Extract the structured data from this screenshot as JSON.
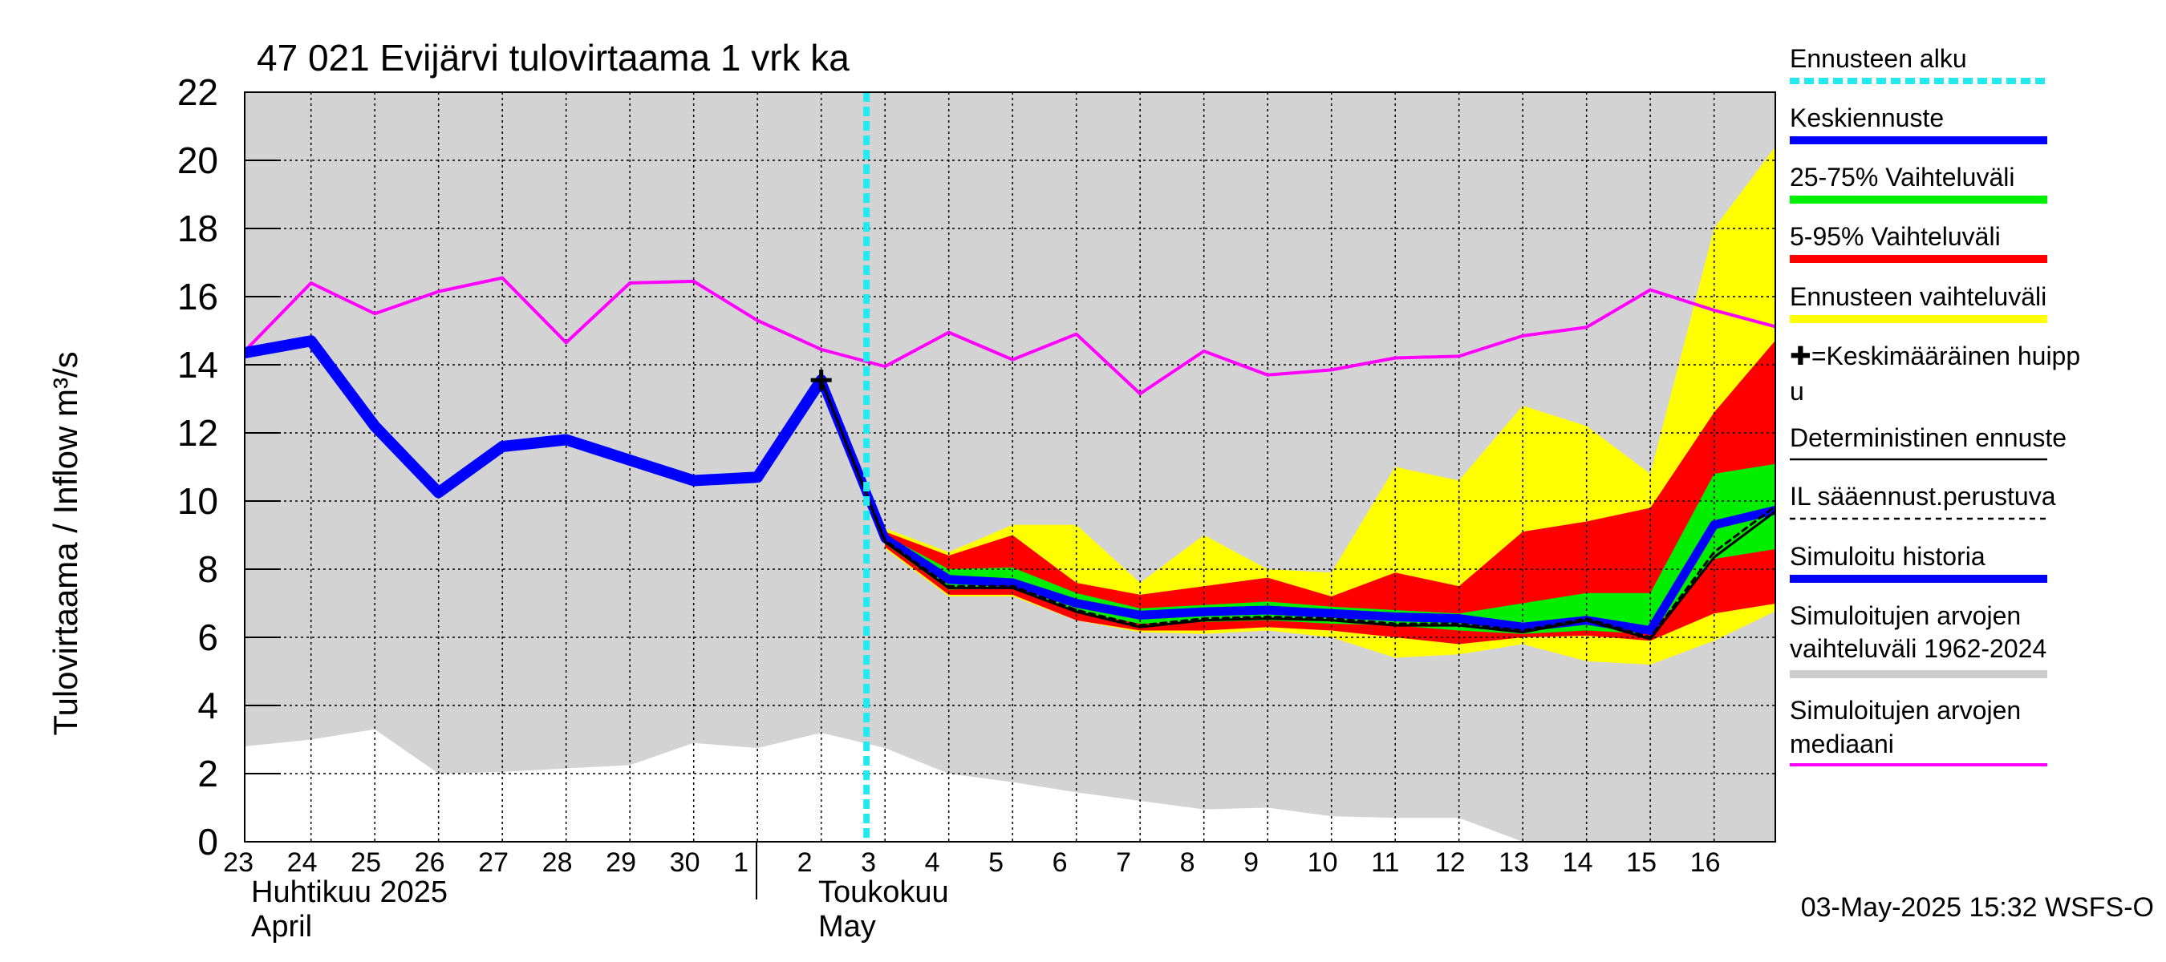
{
  "chart_data": {
    "type": "area",
    "title": "47 021 Evijärvi tulovirtaama 1 vrk ka",
    "ylabel": "Tulovirtaama / Inflow    m³/s",
    "ylim": [
      0,
      22
    ],
    "yticks": [
      0,
      2,
      4,
      6,
      8,
      10,
      12,
      14,
      16,
      18,
      20,
      22
    ],
    "x_ticks": [
      "23",
      "24",
      "25",
      "26",
      "27",
      "28",
      "29",
      "30",
      "1",
      "2",
      "3",
      "4",
      "5",
      "6",
      "7",
      "8",
      "9",
      "10",
      "11",
      "12",
      "13",
      "14",
      "15",
      "16"
    ],
    "xlim": [
      -0.04,
      24.0
    ],
    "months": [
      {
        "fi": "Huhtikuu  2025",
        "en": "April"
      },
      {
        "fi": "Toukokuu",
        "en": "May"
      }
    ],
    "forecast_start": 10,
    "grid": true,
    "legend_position": "right",
    "series": [
      {
        "name": "sim_range_upper",
        "x": [
          -0.04,
          24
        ],
        "values": [
          22,
          22
        ]
      },
      {
        "name": "sim_range_lower",
        "x": [
          -0.04,
          1,
          2,
          3,
          4,
          5,
          6,
          7,
          8,
          9,
          10,
          11,
          12,
          13,
          14,
          15,
          16,
          17,
          18,
          19,
          20,
          21,
          22,
          23,
          24
        ],
        "values": [
          2.8,
          3.0,
          3.3,
          2.0,
          2.05,
          2.15,
          2.25,
          2.9,
          2.75,
          3.2,
          2.75,
          2.0,
          1.75,
          1.45,
          1.2,
          0.95,
          1.0,
          0.75,
          0.7,
          0.7,
          0.0,
          -0.3,
          -0.3,
          -0.3,
          -0.3
        ]
      },
      {
        "name": "Simuloitujen arvojen mediaani",
        "x": [
          -0.04,
          1,
          2,
          3,
          4,
          5,
          6,
          7,
          8,
          9,
          10,
          11,
          12,
          13,
          14,
          15,
          16,
          17,
          18,
          19,
          20,
          21,
          22,
          23,
          24
        ],
        "values": [
          14.4,
          16.4,
          15.5,
          16.15,
          16.55,
          14.65,
          16.4,
          16.45,
          15.3,
          14.45,
          13.95,
          14.95,
          14.15,
          14.9,
          13.15,
          14.4,
          13.7,
          13.85,
          14.2,
          14.25,
          14.85,
          15.1,
          16.2,
          15.6,
          15.1
        ]
      },
      {
        "name": "Ennusteen vaihteluväli",
        "x": [
          10,
          11,
          12,
          13,
          14,
          15,
          16,
          17,
          18,
          19,
          20,
          21,
          22,
          23,
          24
        ],
        "upper": [
          9.2,
          8.5,
          9.3,
          9.3,
          7.6,
          9.0,
          8.0,
          7.9,
          11.0,
          10.6,
          12.8,
          12.2,
          10.8,
          18.0,
          20.5
        ],
        "lower": [
          8.6,
          7.2,
          7.2,
          6.5,
          6.15,
          6.1,
          6.2,
          6.0,
          5.4,
          5.5,
          5.8,
          5.3,
          5.2,
          5.9,
          6.8
        ]
      },
      {
        "name": "5-95% Vaihteluväli",
        "x": [
          10,
          11,
          12,
          13,
          14,
          15,
          16,
          17,
          18,
          19,
          20,
          21,
          22,
          23,
          24
        ],
        "upper": [
          9.1,
          8.4,
          9.0,
          7.6,
          7.25,
          7.5,
          7.75,
          7.2,
          7.9,
          7.5,
          9.1,
          9.4,
          9.8,
          12.6,
          14.8
        ],
        "lower": [
          8.65,
          7.25,
          7.25,
          6.5,
          6.2,
          6.2,
          6.3,
          6.2,
          6.0,
          5.8,
          6.0,
          6.05,
          5.9,
          6.7,
          7.0
        ]
      },
      {
        "name": "25-75% Vaihteluväli",
        "x": [
          10,
          11,
          12,
          13,
          14,
          15,
          16,
          17,
          18,
          19,
          20,
          21,
          22,
          23,
          24
        ],
        "upper": [
          9.0,
          8.0,
          8.05,
          7.3,
          6.85,
          6.95,
          7.05,
          6.9,
          6.8,
          6.7,
          7.0,
          7.3,
          7.3,
          10.8,
          11.1
        ],
        "lower": [
          8.75,
          7.4,
          7.45,
          6.75,
          6.4,
          6.45,
          6.5,
          6.4,
          6.35,
          6.2,
          6.1,
          6.2,
          6.1,
          8.3,
          8.6
        ]
      },
      {
        "name": "Simuloitu historia",
        "x": [
          -0.04,
          1,
          2,
          3,
          4,
          5,
          6,
          7,
          8,
          9
        ],
        "values": [
          14.35,
          14.7,
          12.2,
          10.25,
          11.6,
          11.8,
          11.2,
          10.6,
          10.7,
          13.55
        ]
      },
      {
        "name": "Keskiennuste",
        "x": [
          9,
          10,
          11,
          12,
          13,
          14,
          15,
          16,
          17,
          18,
          19,
          20,
          21,
          22,
          23,
          24
        ],
        "values": [
          13.55,
          8.9,
          7.7,
          7.6,
          7.0,
          6.65,
          6.75,
          6.8,
          6.7,
          6.6,
          6.55,
          6.3,
          6.5,
          6.2,
          9.3,
          9.75
        ]
      },
      {
        "name": "Deterministinen ennuste",
        "x": [
          9,
          10,
          11,
          12,
          13,
          14,
          15,
          16,
          17,
          18,
          19,
          20,
          21,
          22,
          23,
          24
        ],
        "values": [
          13.55,
          8.8,
          7.45,
          7.45,
          6.75,
          6.3,
          6.5,
          6.55,
          6.5,
          6.35,
          6.35,
          6.15,
          6.5,
          5.95,
          8.35,
          9.75
        ]
      },
      {
        "name": "IL sääennust.perustuva",
        "x": [
          9,
          10,
          11,
          12,
          13,
          14,
          15,
          16,
          17,
          18,
          19,
          20,
          21,
          22,
          23,
          24
        ],
        "values": [
          13.55,
          8.85,
          7.5,
          7.5,
          6.8,
          6.35,
          6.55,
          6.6,
          6.55,
          6.4,
          6.4,
          6.2,
          6.55,
          6.0,
          8.5,
          9.9
        ]
      }
    ],
    "peak_marker": {
      "x": 9,
      "y": 13.55
    }
  },
  "legend": [
    {
      "label": "Ennusteen alku",
      "color": "#22e8f0",
      "style": "dotted"
    },
    {
      "label": "Keskiennuste",
      "color": "#0000ff",
      "style": "solid"
    },
    {
      "label": "25-75% Vaihteluväli",
      "color": "#00ee00",
      "style": "solid"
    },
    {
      "label": "5-95% Vaihteluväli",
      "color": "#ff0000",
      "style": "solid"
    },
    {
      "label": "Ennusteen vaihteluväli",
      "color": "#ffff00",
      "style": "solid"
    },
    {
      "label": "✚=Keskimääräinen huipp",
      "label2": "u",
      "color": "#000000",
      "style": "none"
    },
    {
      "label": "Deterministinen ennuste",
      "color": "#000000",
      "style": "thin"
    },
    {
      "label": "IL sääennust.perustuva",
      "color": "#000000",
      "style": "dashed"
    },
    {
      "label": "Simuloitu historia",
      "color": "#0000ff",
      "style": "solid"
    },
    {
      "label": "Simuloitujen arvojen",
      "label2": "vaihteluväli 1962-2024",
      "color": "#cccccc",
      "style": "solid"
    },
    {
      "label": "Simuloitujen arvojen",
      "label2": "mediaani",
      "color": "#ff00ff",
      "style": "thin-magenta"
    }
  ],
  "footer": "03-May-2025 15:32 WSFS-O",
  "colors": {
    "sim_range": "#d3d3d3",
    "forecast_range": "#ffff00",
    "p5_95": "#ff0000",
    "p25_75": "#00ee00",
    "mean": "#0000ff",
    "median": "#ff00ff",
    "forecast_start": "#22e8f0"
  }
}
